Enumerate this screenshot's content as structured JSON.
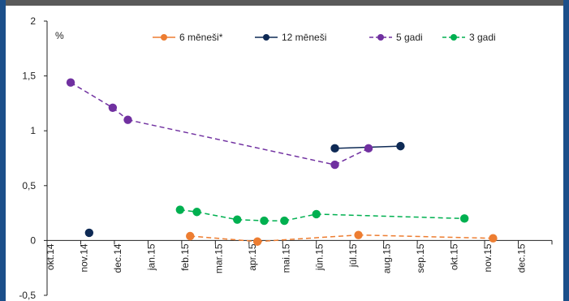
{
  "chart_data": {
    "type": "line",
    "ylabel": "%",
    "ylim": [
      -0.5,
      2
    ],
    "yticks": [
      "-0,5",
      "0",
      "0,5",
      "1",
      "1,5",
      "2"
    ],
    "ytick_values": [
      -0.5,
      0,
      0.5,
      1,
      1.5,
      2
    ],
    "categories": [
      "okt.14",
      "nov.14",
      "dec.14",
      "jan.15",
      "feb.15",
      "mar.15",
      "apr.15",
      "mai.15",
      "jūn.15",
      "jūl.15",
      "aug.15",
      "sep.15",
      "okt.15",
      "nov.15",
      "dec.15"
    ],
    "legend_position": "top",
    "grid": false,
    "series": [
      {
        "name": "6 mēneši*",
        "color": "#ed7d31",
        "points": [
          [
            4.25,
            0.04
          ],
          [
            6.25,
            -0.01
          ],
          [
            9.25,
            0.05
          ],
          [
            13.25,
            0.02
          ]
        ],
        "segments": [
          "dashed",
          "dashed",
          "dashed"
        ]
      },
      {
        "name": "12 mēneši",
        "color": "#0e2a55",
        "points": [
          [
            1.25,
            0.07
          ],
          [
            8.55,
            0.84
          ],
          [
            10.5,
            0.86
          ]
        ],
        "segments": [
          "none",
          "solid"
        ]
      },
      {
        "name": "5 gadi",
        "color": "#7030a0",
        "points": [
          [
            0.7,
            1.44
          ],
          [
            1.95,
            1.21
          ],
          [
            2.4,
            1.1
          ],
          [
            8.55,
            0.69
          ],
          [
            9.55,
            0.84
          ]
        ],
        "segments": [
          "dashed",
          "dashed",
          "dashed",
          "dashed"
        ]
      },
      {
        "name": "3 gadi",
        "color": "#00b050",
        "points": [
          [
            3.95,
            0.28
          ],
          [
            4.45,
            0.26
          ],
          [
            5.65,
            0.19
          ],
          [
            6.45,
            0.18
          ],
          [
            7.05,
            0.18
          ],
          [
            8.0,
            0.24
          ],
          [
            12.4,
            0.2
          ]
        ],
        "segments": [
          "dashed",
          "dashed",
          "dashed",
          "dashed",
          "dashed",
          "dashed"
        ]
      }
    ]
  }
}
